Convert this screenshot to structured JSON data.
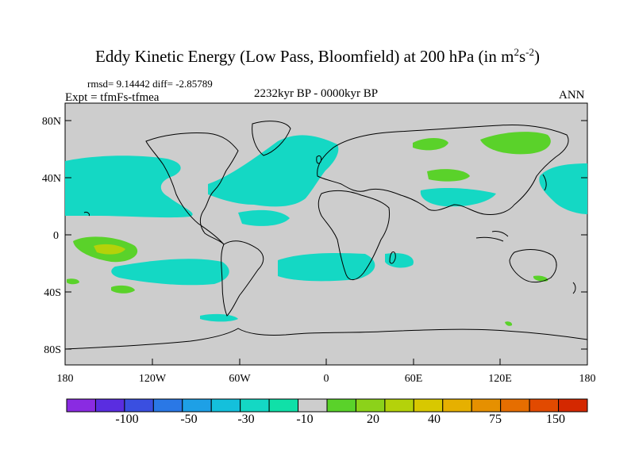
{
  "title": {
    "main": "Eddy Kinetic Energy (Low Pass, Bloomfield) at 200 hPa (in m",
    "sup1": "2",
    "mid": "s",
    "sup2": "-2",
    "end": ")"
  },
  "stats": "rmsd= 9.14442  diff= -2.85789",
  "expt": "Expt = tfmFs-tfmea",
  "period": "2232kyr BP - 0000kyr BP",
  "season": "ANN",
  "lat_labels": [
    "80N",
    "40N",
    "0",
    "40S",
    "80S"
  ],
  "lon_labels": [
    "180",
    "120W",
    "60W",
    "0",
    "60E",
    "120E",
    "180"
  ],
  "colorbar": {
    "colors": [
      "#8a2be2",
      "#5a2de0",
      "#3a4fe0",
      "#2a78e6",
      "#1ea0e6",
      "#14c0dc",
      "#14d8c4",
      "#10e0a8",
      "#cdcdcd",
      "#5ad22a",
      "#8cd21a",
      "#b4d20a",
      "#d8c800",
      "#e6b000",
      "#e69000",
      "#e66e00",
      "#e24a00",
      "#d42800"
    ],
    "labels": [
      "-100",
      "-50",
      "-30",
      "-10",
      "20",
      "40",
      "75",
      "150"
    ]
  },
  "legend_colors": {
    "ocean_land": "#cdcdcd",
    "cyan": "#14d8c4",
    "green": "#5ad22a",
    "lightgreen": "#8cd21a",
    "yellowgreen": "#c8d21a"
  }
}
